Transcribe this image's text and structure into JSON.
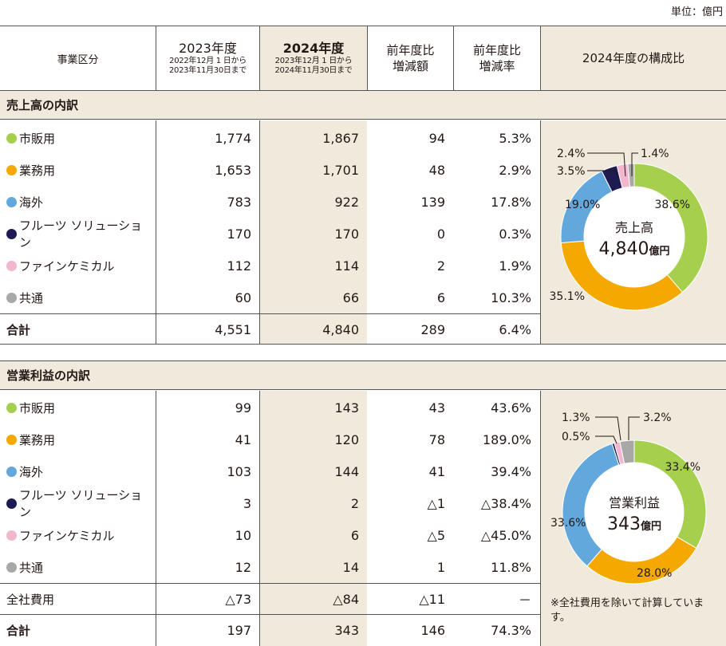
{
  "unit_label": "単位：億円",
  "header": {
    "category": "事業区分",
    "fy2023": "2023年度",
    "fy2023_period_1": "2022年12月 1 日から",
    "fy2023_period_2": "2023年11月30日まで",
    "fy2024": "2024年度",
    "fy2024_period_1": "2023年12月 1 日から",
    "fy2024_period_2": "2024年11月30日まで",
    "diff_1": "前年度比",
    "diff_2": "増減額",
    "rate_1": "前年度比",
    "rate_2": "増減率",
    "composition": "2024年度の構成比"
  },
  "colors": {
    "green": "#a5cf4c",
    "orange": "#f5a800",
    "blue": "#63a8dc",
    "navy": "#1d1b52",
    "pink": "#f2b6cf",
    "gray": "#a8a8a8",
    "shade": "#efeadb"
  },
  "sales": {
    "title": "売上高の内訳",
    "rows": [
      {
        "name": "市販用",
        "color": "#a5cf4c",
        "v2023": "1,774",
        "v2024": "1,867",
        "diff": "94",
        "rate": "5.3%"
      },
      {
        "name": "業務用",
        "color": "#f5a800",
        "v2023": "1,653",
        "v2024": "1,701",
        "diff": "48",
        "rate": "2.9%"
      },
      {
        "name": "海外",
        "color": "#63a8dc",
        "v2023": "783",
        "v2024": "922",
        "diff": "139",
        "rate": "17.8%"
      },
      {
        "name": "フルーツ ソリューション",
        "color": "#1d1b52",
        "v2023": "170",
        "v2024": "170",
        "diff": "0",
        "rate": "0.3%"
      },
      {
        "name": "ファインケミカル",
        "color": "#f2b6cf",
        "v2023": "112",
        "v2024": "114",
        "diff": "2",
        "rate": "1.9%"
      },
      {
        "name": "共通",
        "color": "#a8a8a8",
        "v2023": "60",
        "v2024": "66",
        "diff": "6",
        "rate": "10.3%"
      }
    ],
    "total": {
      "name": "合計",
      "v2023": "4,551",
      "v2024": "4,840",
      "diff": "289",
      "rate": "6.4%"
    },
    "donut_center_1": "売上高",
    "donut_center_value": "4,840",
    "donut_center_unit": "億円"
  },
  "profit": {
    "title": "営業利益の内訳",
    "rows": [
      {
        "name": "市販用",
        "color": "#a5cf4c",
        "v2023": "99",
        "v2024": "143",
        "diff": "43",
        "rate": "43.6%"
      },
      {
        "name": "業務用",
        "color": "#f5a800",
        "v2023": "41",
        "v2024": "120",
        "diff": "78",
        "rate": "189.0%"
      },
      {
        "name": "海外",
        "color": "#63a8dc",
        "v2023": "103",
        "v2024": "144",
        "diff": "41",
        "rate": "39.4%"
      },
      {
        "name": "フルーツ ソリューション",
        "color": "#1d1b52",
        "v2023": "3",
        "v2024": "2",
        "diff": "△1",
        "rate": "△38.4%"
      },
      {
        "name": "ファインケミカル",
        "color": "#f2b6cf",
        "v2023": "10",
        "v2024": "6",
        "diff": "△5",
        "rate": "△45.0%"
      },
      {
        "name": "共通",
        "color": "#a8a8a8",
        "v2023": "12",
        "v2024": "14",
        "diff": "1",
        "rate": "11.8%"
      }
    ],
    "corporate": {
      "name": "全社費用",
      "v2023": "△73",
      "v2024": "△84",
      "diff": "△11",
      "rate": "－"
    },
    "total": {
      "name": "合計",
      "v2023": "197",
      "v2024": "343",
      "diff": "146",
      "rate": "74.3%"
    },
    "donut_center_1": "営業利益",
    "donut_center_value": "343",
    "donut_center_unit": "億円",
    "note": "※全社費用を除いて計算しています。"
  },
  "chart_data": [
    {
      "type": "pie",
      "title": "",
      "categories": [
        "市販用",
        "業務用",
        "海外",
        "フルーツ ソリューション",
        "ファインケミカル",
        "共通"
      ],
      "values": [
        38.6,
        35.1,
        19.0,
        3.5,
        2.4,
        1.4
      ],
      "labels": [
        "38.6%",
        "35.1%",
        "19.0%",
        "3.5%",
        "2.4%",
        "1.4%"
      ]
    },
    {
      "type": "pie",
      "title": "",
      "categories": [
        "市販用",
        "業務用",
        "海外",
        "フルーツ ソリューション",
        "ファインケミカル",
        "共通"
      ],
      "values": [
        33.4,
        28.0,
        33.6,
        0.5,
        1.3,
        3.2
      ],
      "labels": [
        "33.4%",
        "28.0%",
        "33.6%",
        "0.5%",
        "1.3%",
        "3.2%"
      ]
    }
  ]
}
